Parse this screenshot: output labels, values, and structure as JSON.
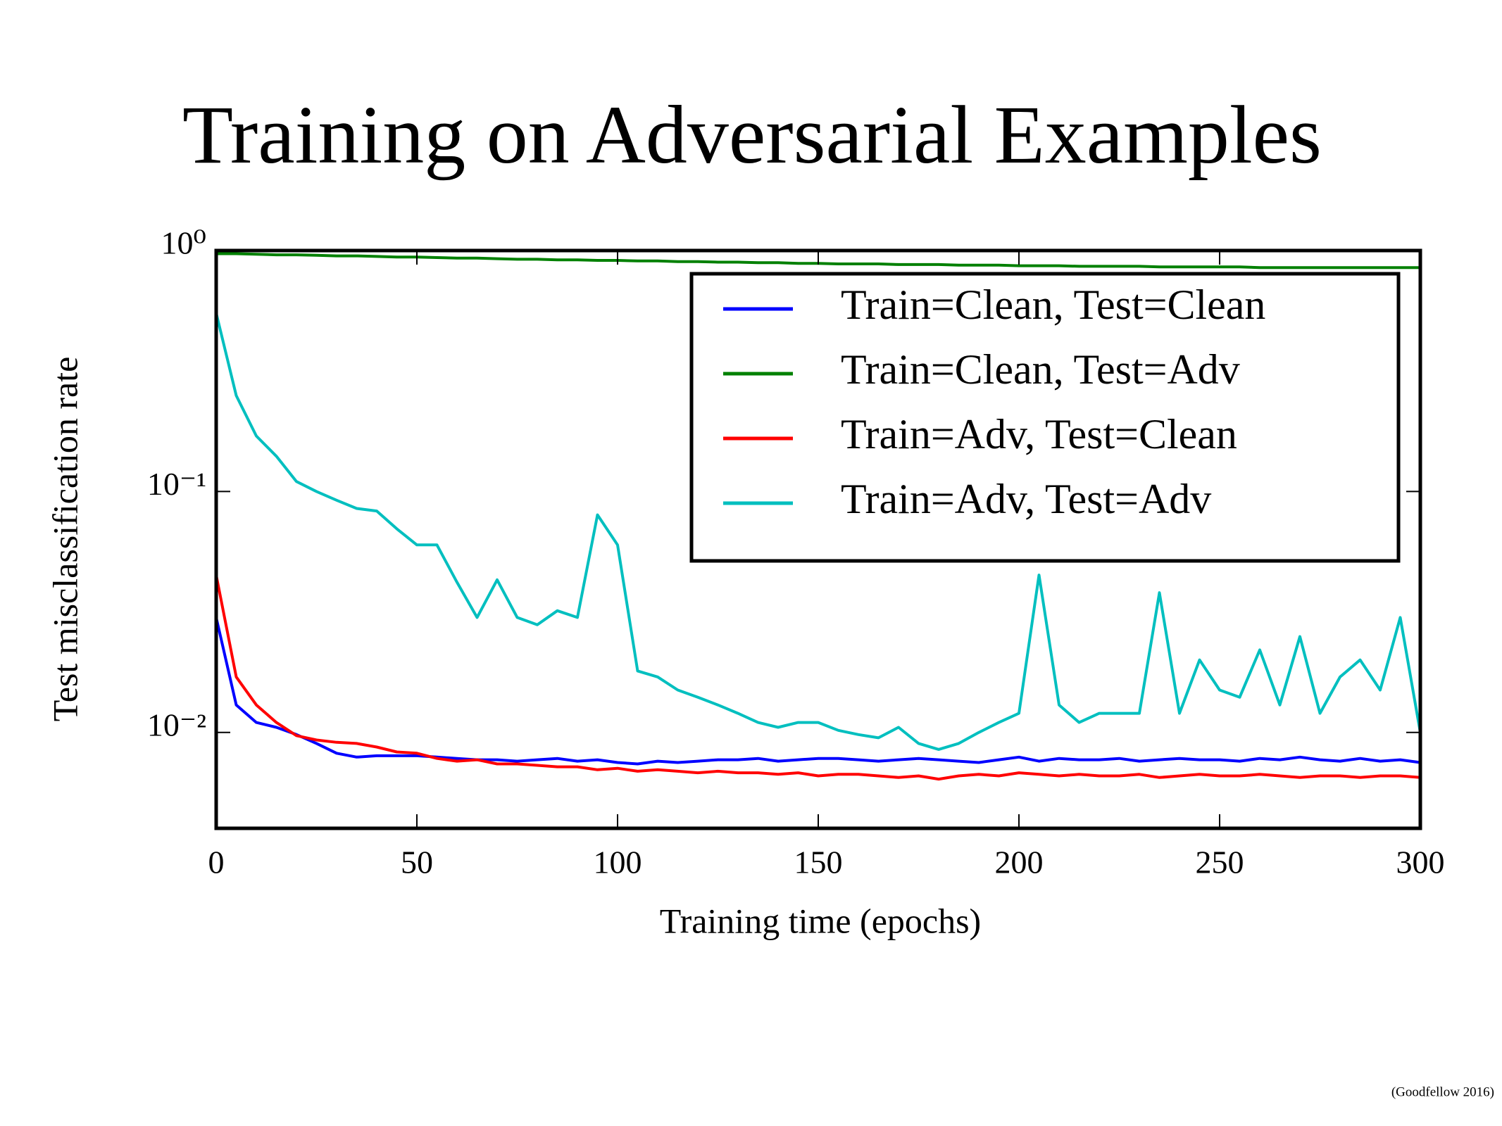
{
  "chart_data": {
    "type": "line",
    "title": "Training on Adversarial Examples",
    "x_label": "Training time (epochs)",
    "y_label": "Test misclassification rate",
    "footnote": "(Goodfellow 2016)",
    "log_y": true,
    "grid": false,
    "legend": "upper right",
    "xlim": [
      0,
      300
    ],
    "xticks": [
      0,
      50,
      100,
      150,
      200,
      250,
      300
    ],
    "ylim": [
      0.004,
      1
    ],
    "yticks": [
      {
        "value": 1,
        "label": "10⁰"
      },
      {
        "value": 0.1,
        "label": "10⁻¹"
      },
      {
        "value": 0.01,
        "label": "10⁻²"
      }
    ],
    "x": [
      0,
      5,
      10,
      15,
      20,
      25,
      30,
      35,
      40,
      45,
      50,
      55,
      60,
      65,
      70,
      75,
      80,
      85,
      90,
      95,
      100,
      105,
      110,
      115,
      120,
      125,
      130,
      135,
      140,
      145,
      150,
      155,
      160,
      165,
      170,
      175,
      180,
      185,
      190,
      195,
      200,
      205,
      210,
      215,
      220,
      225,
      230,
      235,
      240,
      245,
      250,
      255,
      260,
      265,
      270,
      275,
      280,
      285,
      290,
      295,
      300
    ],
    "series": [
      {
        "name": "Train=Clean, Test=Clean",
        "color": "#0000ff",
        "values": [
          0.03,
          0.013,
          0.011,
          0.0105,
          0.0098,
          0.009,
          0.0082,
          0.0079,
          0.008,
          0.008,
          0.008,
          0.0079,
          0.0078,
          0.0077,
          0.0077,
          0.0076,
          0.0077,
          0.0078,
          0.0076,
          0.0077,
          0.0075,
          0.0074,
          0.0076,
          0.0075,
          0.0076,
          0.0077,
          0.0077,
          0.0078,
          0.0076,
          0.0077,
          0.0078,
          0.0078,
          0.0077,
          0.0076,
          0.0077,
          0.0078,
          0.0077,
          0.0076,
          0.0075,
          0.0077,
          0.0079,
          0.0076,
          0.0078,
          0.0077,
          0.0077,
          0.0078,
          0.0076,
          0.0077,
          0.0078,
          0.0077,
          0.0077,
          0.0076,
          0.0078,
          0.0077,
          0.0079,
          0.0077,
          0.0076,
          0.0078,
          0.0076,
          0.0077,
          0.0075
        ]
      },
      {
        "name": "Train=Clean, Test=Adv",
        "color": "#008000",
        "values": [
          0.97,
          0.97,
          0.965,
          0.96,
          0.96,
          0.955,
          0.95,
          0.95,
          0.945,
          0.94,
          0.94,
          0.935,
          0.93,
          0.93,
          0.925,
          0.92,
          0.92,
          0.915,
          0.915,
          0.91,
          0.91,
          0.905,
          0.905,
          0.9,
          0.9,
          0.895,
          0.895,
          0.89,
          0.89,
          0.885,
          0.885,
          0.88,
          0.88,
          0.88,
          0.875,
          0.875,
          0.875,
          0.87,
          0.87,
          0.87,
          0.865,
          0.865,
          0.865,
          0.86,
          0.86,
          0.86,
          0.86,
          0.855,
          0.855,
          0.855,
          0.855,
          0.855,
          0.85,
          0.85,
          0.85,
          0.85,
          0.85,
          0.85,
          0.85,
          0.85,
          0.85
        ]
      },
      {
        "name": "Train=Adv, Test=Clean",
        "color": "#ff0000",
        "values": [
          0.045,
          0.017,
          0.013,
          0.011,
          0.0097,
          0.0093,
          0.0091,
          0.009,
          0.0087,
          0.0083,
          0.0082,
          0.0078,
          0.0076,
          0.0077,
          0.0074,
          0.0074,
          0.0073,
          0.0072,
          0.0072,
          0.007,
          0.0071,
          0.0069,
          0.007,
          0.0069,
          0.0068,
          0.0069,
          0.0068,
          0.0068,
          0.0067,
          0.0068,
          0.0066,
          0.0067,
          0.0067,
          0.0066,
          0.0065,
          0.0066,
          0.0064,
          0.0066,
          0.0067,
          0.0066,
          0.0068,
          0.0067,
          0.0066,
          0.0067,
          0.0066,
          0.0066,
          0.0067,
          0.0065,
          0.0066,
          0.0067,
          0.0066,
          0.0066,
          0.0067,
          0.0066,
          0.0065,
          0.0066,
          0.0066,
          0.0065,
          0.0066,
          0.0066,
          0.0065
        ]
      },
      {
        "name": "Train=Adv, Test=Adv",
        "color": "#00bfbf",
        "values": [
          0.55,
          0.25,
          0.17,
          0.14,
          0.11,
          0.1,
          0.092,
          0.085,
          0.083,
          0.07,
          0.06,
          0.06,
          0.042,
          0.03,
          0.043,
          0.03,
          0.028,
          0.032,
          0.03,
          0.08,
          0.06,
          0.018,
          0.017,
          0.015,
          0.014,
          0.013,
          0.012,
          0.011,
          0.0105,
          0.011,
          0.011,
          0.0102,
          0.0098,
          0.0095,
          0.0105,
          0.009,
          0.0085,
          0.009,
          0.01,
          0.011,
          0.012,
          0.045,
          0.013,
          0.011,
          0.012,
          0.012,
          0.012,
          0.038,
          0.012,
          0.02,
          0.015,
          0.014,
          0.022,
          0.013,
          0.025,
          0.012,
          0.017,
          0.02,
          0.015,
          0.03,
          0.01
        ]
      }
    ]
  }
}
